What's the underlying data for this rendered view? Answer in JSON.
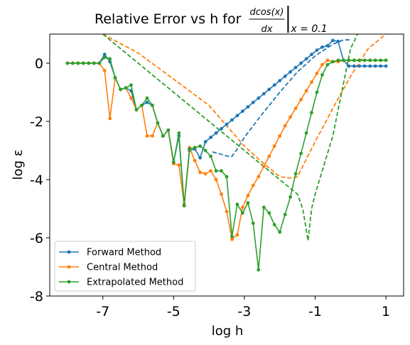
{
  "chart_data": {
    "type": "line",
    "title": {
      "prefix": "Relative Error vs h for ",
      "numerator": "dcos(x)",
      "denominator": "dx",
      "evaluated_at": "x = 0.1"
    },
    "xlabel": "log h",
    "ylabel": "log ε",
    "xlim": [
      -8.5,
      1.5
    ],
    "ylim": [
      -8,
      1
    ],
    "xticks": [
      -7,
      -5,
      -3,
      -1,
      1
    ],
    "xtick_labels": [
      "-7",
      "-5",
      "-3",
      "-1",
      "1"
    ],
    "yticks": [
      0,
      -2,
      -4,
      -6,
      -8
    ],
    "ytick_labels": [
      "0",
      "-2",
      "-4",
      "-6",
      "-8"
    ],
    "grid": false,
    "legend_position": "lower-left",
    "series": [
      {
        "name": "Forward Method",
        "color": "#1f77b4",
        "marker": "dot",
        "x": [
          -8.0,
          -7.85,
          -7.7,
          -7.55,
          -7.4,
          -7.25,
          -7.1,
          -6.95,
          -6.8,
          -6.65,
          -6.5,
          -6.35,
          -6.2,
          -6.05,
          -5.9,
          -5.75,
          -5.6,
          -5.45,
          -5.3,
          -5.15,
          -5.0,
          -4.85,
          -4.7,
          -4.55,
          -4.4,
          -4.25,
          -4.1,
          -3.95,
          -3.8,
          -3.65,
          -3.5,
          -3.35,
          -3.2,
          -3.05,
          -2.9,
          -2.75,
          -2.6,
          -2.45,
          -2.3,
          -2.15,
          -2.0,
          -1.85,
          -1.7,
          -1.55,
          -1.4,
          -1.25,
          -1.1,
          -0.95,
          -0.8,
          -0.65,
          -0.5,
          -0.35,
          -0.2,
          -0.05,
          0.1,
          0.25,
          0.4,
          0.55,
          0.7,
          0.85,
          1.0
        ],
        "y": [
          0.0,
          0.0,
          0.0,
          0.0,
          0.0,
          0.0,
          0.0,
          0.3,
          0.05,
          -0.5,
          -0.9,
          -0.85,
          -0.95,
          -1.6,
          -1.45,
          -1.35,
          -1.45,
          -2.05,
          -2.5,
          -2.3,
          -3.4,
          -2.5,
          -4.85,
          -3.0,
          -2.95,
          -3.25,
          -2.7,
          -2.55,
          -2.4,
          -2.25,
          -2.1,
          -1.95,
          -1.8,
          -1.65,
          -1.5,
          -1.35,
          -1.2,
          -1.05,
          -0.9,
          -0.75,
          -0.6,
          -0.45,
          -0.3,
          -0.15,
          0.0,
          0.15,
          0.3,
          0.45,
          0.55,
          0.6,
          0.78,
          0.75,
          0.1,
          -0.1,
          -0.1,
          -0.1,
          -0.1,
          -0.1,
          -0.1,
          -0.1,
          -0.1
        ]
      },
      {
        "name": "Central Method",
        "color": "#ff7f0e",
        "marker": "dot",
        "x": [
          -8.0,
          -7.85,
          -7.7,
          -7.55,
          -7.4,
          -7.25,
          -7.1,
          -6.95,
          -6.8,
          -6.65,
          -6.5,
          -6.35,
          -6.2,
          -6.05,
          -5.9,
          -5.75,
          -5.6,
          -5.45,
          -5.3,
          -5.15,
          -5.0,
          -4.85,
          -4.7,
          -4.55,
          -4.4,
          -4.25,
          -4.1,
          -3.95,
          -3.8,
          -3.65,
          -3.5,
          -3.35,
          -3.2,
          -3.05,
          -2.9,
          -2.75,
          -2.6,
          -2.45,
          -2.3,
          -2.15,
          -2.0,
          -1.85,
          -1.7,
          -1.55,
          -1.4,
          -1.25,
          -1.1,
          -0.95,
          -0.8,
          -0.65,
          -0.5,
          -0.35,
          -0.2,
          -0.05,
          0.1,
          0.25,
          0.4,
          0.55,
          0.7,
          0.85,
          1.0
        ],
        "y": [
          0.0,
          0.0,
          0.0,
          0.0,
          0.0,
          0.0,
          0.0,
          -0.25,
          -1.9,
          -0.5,
          -0.9,
          -0.85,
          -1.2,
          -1.6,
          -1.45,
          -2.5,
          -2.5,
          -2.05,
          -2.5,
          -2.3,
          -3.45,
          -3.5,
          -4.85,
          -2.9,
          -3.35,
          -3.75,
          -3.8,
          -3.7,
          -4.0,
          -4.5,
          -5.1,
          -6.05,
          -5.9,
          -4.95,
          -4.55,
          -4.2,
          -3.9,
          -3.55,
          -3.2,
          -2.85,
          -2.5,
          -2.15,
          -1.85,
          -1.55,
          -1.25,
          -0.95,
          -0.65,
          -0.35,
          -0.05,
          0.1,
          0.05,
          0.05,
          0.1,
          0.1,
          0.1,
          0.1,
          0.1,
          0.1,
          0.1,
          0.1,
          0.1
        ]
      },
      {
        "name": "Extrapolated Method",
        "color": "#2ca02c",
        "marker": "dot",
        "x": [
          -8.0,
          -7.85,
          -7.7,
          -7.55,
          -7.4,
          -7.25,
          -7.1,
          -6.95,
          -6.8,
          -6.65,
          -6.5,
          -6.35,
          -6.2,
          -6.05,
          -5.9,
          -5.75,
          -5.6,
          -5.45,
          -5.3,
          -5.15,
          -5.0,
          -4.85,
          -4.7,
          -4.55,
          -4.4,
          -4.25,
          -4.1,
          -3.95,
          -3.8,
          -3.65,
          -3.5,
          -3.35,
          -3.2,
          -3.05,
          -2.9,
          -2.75,
          -2.6,
          -2.45,
          -2.3,
          -2.15,
          -2.0,
          -1.85,
          -1.7,
          -1.55,
          -1.4,
          -1.25,
          -1.1,
          -0.95,
          -0.8,
          -0.65,
          -0.5,
          -0.35,
          -0.2,
          -0.05,
          0.1,
          0.25,
          0.4,
          0.55,
          0.7,
          0.85,
          1.0
        ],
        "y": [
          0.0,
          0.0,
          0.0,
          0.0,
          0.0,
          0.0,
          0.0,
          0.2,
          0.15,
          -0.5,
          -0.9,
          -0.85,
          -0.75,
          -1.6,
          -1.45,
          -1.2,
          -1.45,
          -2.05,
          -2.5,
          -2.3,
          -3.4,
          -2.4,
          -4.9,
          -2.95,
          -2.9,
          -2.85,
          -3.0,
          -3.2,
          -3.7,
          -3.7,
          -3.9,
          -5.95,
          -4.85,
          -5.15,
          -4.8,
          -5.5,
          -7.1,
          -4.95,
          -5.15,
          -5.55,
          -5.8,
          -5.2,
          -4.6,
          -3.8,
          -3.1,
          -2.4,
          -1.7,
          -1.0,
          -0.4,
          -0.05,
          0.05,
          0.1,
          0.1,
          0.1,
          0.1,
          0.1,
          0.1,
          0.1,
          0.1,
          0.1,
          0.1
        ]
      }
    ],
    "reference_lines": [
      {
        "color": "#1f77b4",
        "style": "dashed",
        "x": [
          -3.9,
          -3.6,
          -3.45,
          -3.35,
          -3.2,
          -3.0,
          -2.5,
          -2.0,
          -1.5,
          -1.0,
          -0.5,
          -0.2,
          0.0
        ],
        "y": [
          -3.05,
          -3.15,
          -3.2,
          -3.2,
          -2.95,
          -2.55,
          -1.75,
          -1.0,
          -0.3,
          0.25,
          0.65,
          0.8,
          0.8
        ]
      },
      {
        "color": "#ff7f0e",
        "style": "dashed",
        "x": [
          -7.0,
          -6.0,
          -5.0,
          -4.0,
          -3.0,
          -2.5,
          -2.0,
          -1.7,
          -1.5,
          -1.0,
          -0.5,
          0.0,
          0.5,
          1.0
        ],
        "y": [
          1.0,
          0.35,
          -0.55,
          -1.45,
          -2.85,
          -3.4,
          -3.9,
          -3.95,
          -3.9,
          -2.7,
          -1.55,
          -0.45,
          0.5,
          1.0
        ]
      },
      {
        "color": "#2ca02c",
        "style": "dashed",
        "x": [
          -7.0,
          -6.0,
          -5.0,
          -4.0,
          -3.0,
          -2.0,
          -1.5,
          -1.35,
          -1.2,
          -1.1,
          -1.0,
          -0.5,
          0.0,
          0.2
        ],
        "y": [
          1.0,
          0.0,
          -1.0,
          -2.0,
          -3.0,
          -4.0,
          -4.5,
          -5.0,
          -6.1,
          -5.0,
          -4.5,
          -2.5,
          0.5,
          1.0
        ]
      }
    ]
  }
}
